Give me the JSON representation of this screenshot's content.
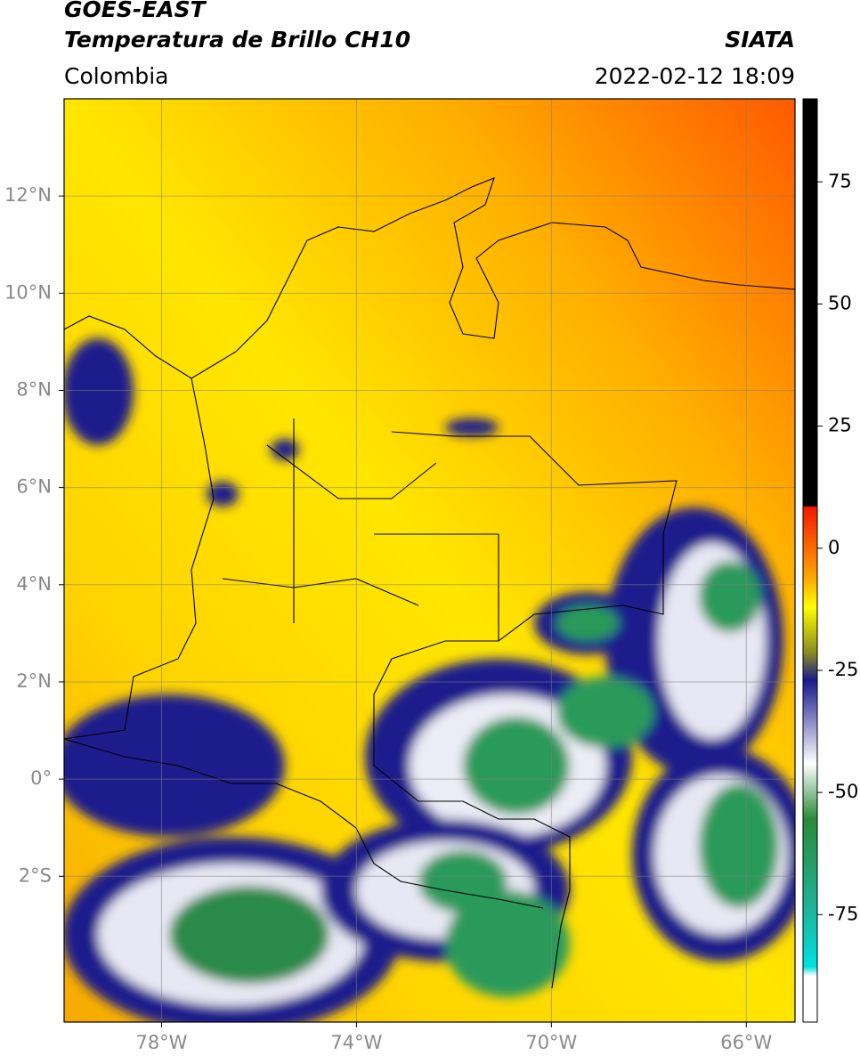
{
  "header": {
    "satellite": "GOES-EAST",
    "product": "Temperatura de Brillo CH10",
    "organization": "SIATA",
    "region": "Colombia",
    "datetime": "2022-02-12 18:09"
  },
  "map": {
    "xlim": [
      -80,
      -65
    ],
    "ylim": [
      -5,
      14
    ],
    "xticks": [
      {
        "value": -78,
        "label": "78°W"
      },
      {
        "value": -74,
        "label": "74°W"
      },
      {
        "value": -70,
        "label": "70°W"
      },
      {
        "value": -66,
        "label": "66°W"
      }
    ],
    "yticks": [
      {
        "value": -2,
        "label": "2°S"
      },
      {
        "value": 0,
        "label": "0°"
      },
      {
        "value": 2,
        "label": "2°N"
      },
      {
        "value": 4,
        "label": "4°N"
      },
      {
        "value": 6,
        "label": "6°N"
      },
      {
        "value": 8,
        "label": "8°N"
      },
      {
        "value": 10,
        "label": "10°N"
      },
      {
        "value": 12,
        "label": "12°N"
      }
    ],
    "grid": true
  },
  "colorbar": {
    "lim": [
      -97,
      92
    ],
    "ticks": [
      75,
      50,
      25,
      0,
      -25,
      -50,
      -75
    ]
  }
}
